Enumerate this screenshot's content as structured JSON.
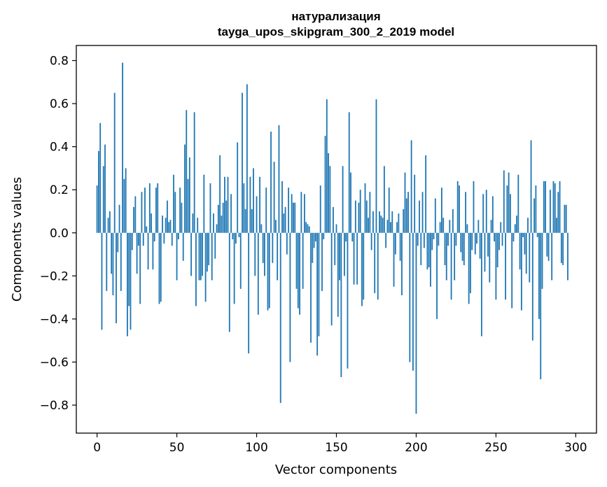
{
  "chart_data": {
    "type": "bar",
    "title": "натурализация",
    "subtitle": "tayga_upos_skipgram_300_2_2019 model",
    "xlabel": "Vector components",
    "ylabel": "Components values",
    "xlim": [
      -13,
      313
    ],
    "ylim": [
      -0.93,
      0.87
    ],
    "xticks": [
      0,
      50,
      100,
      150,
      200,
      250,
      300
    ],
    "yticks": [
      -0.8,
      -0.6,
      -0.4,
      -0.2,
      0.0,
      0.2,
      0.4,
      0.6,
      0.8
    ],
    "ytick_labels": [
      "−0.8",
      "−0.6",
      "−0.4",
      "−0.2",
      "0.0",
      "0.2",
      "0.4",
      "0.6",
      "0.8"
    ],
    "bar_color": "#1f77b4",
    "values": [
      0.22,
      0.38,
      0.51,
      -0.45,
      0.31,
      0.41,
      -0.27,
      0.07,
      0.1,
      -0.19,
      -0.29,
      0.65,
      -0.42,
      -0.09,
      0.13,
      -0.27,
      0.79,
      0.25,
      0.3,
      -0.48,
      -0.34,
      -0.45,
      -0.08,
      0.12,
      0.17,
      -0.19,
      -0.06,
      -0.33,
      0.19,
      -0.06,
      0.21,
      0.03,
      -0.17,
      0.23,
      0.09,
      -0.17,
      -0.04,
      0.21,
      0.23,
      -0.33,
      -0.32,
      0.08,
      -0.05,
      0.07,
      0.15,
      0.05,
      0.06,
      -0.06,
      0.27,
      0.19,
      -0.22,
      -0.03,
      0.21,
      0.14,
      -0.13,
      0.41,
      0.57,
      0.25,
      0.35,
      -0.2,
      0.09,
      0.56,
      -0.34,
      0.07,
      -0.22,
      -0.22,
      -0.2,
      0.27,
      -0.32,
      -0.18,
      -0.15,
      0.23,
      -0.22,
      0.09,
      -0.12,
      0.04,
      0.13,
      0.36,
      0.08,
      0.14,
      0.26,
      0.15,
      0.26,
      -0.46,
      0.18,
      -0.03,
      -0.33,
      -0.05,
      0.42,
      -0.02,
      -0.26,
      0.65,
      0.23,
      0.11,
      0.69,
      -0.56,
      0.26,
      0.11,
      0.3,
      -0.2,
      0.17,
      -0.38,
      0.26,
      0.04,
      -0.14,
      -0.2,
      0.21,
      -0.36,
      -0.35,
      0.47,
      -0.14,
      0.33,
      0.06,
      -0.22,
      0.5,
      -0.79,
      0.24,
      0.09,
      0.12,
      -0.1,
      0.21,
      -0.6,
      0.18,
      0.14,
      0.14,
      -0.26,
      -0.35,
      -0.38,
      0.19,
      -0.26,
      0.18,
      0.05,
      0.04,
      0.03,
      -0.51,
      -0.14,
      -0.07,
      -0.04,
      -0.57,
      -0.48,
      0.22,
      -0.27,
      -0.03,
      0.45,
      0.62,
      0.37,
      0.31,
      -0.43,
      0.12,
      -0.15,
      0.04,
      -0.39,
      -0.22,
      -0.67,
      0.31,
      -0.2,
      -0.04,
      -0.63,
      0.56,
      0.28,
      -0.04,
      -0.24,
      0.15,
      -0.24,
      0.14,
      0.2,
      -0.34,
      -0.31,
      0.23,
      0.15,
      0.07,
      0.19,
      -0.08,
      0.1,
      -0.28,
      0.62,
      -0.31,
      0.1,
      0.08,
      0.07,
      0.31,
      -0.07,
      0.06,
      0.21,
      0.05,
      0.1,
      -0.25,
      -0.1,
      0.05,
      0.09,
      -0.13,
      -0.29,
      0.11,
      0.28,
      0.16,
      0.19,
      -0.6,
      0.43,
      -0.64,
      0.27,
      -0.84,
      -0.06,
      0.15,
      -0.15,
      0.19,
      -0.07,
      0.36,
      -0.17,
      -0.16,
      -0.25,
      -0.08,
      -0.03,
      0.16,
      -0.4,
      -0.06,
      0.05,
      0.21,
      0.07,
      -0.15,
      -0.22,
      -0.06,
      0.06,
      -0.31,
      0.11,
      -0.22,
      -0.06,
      0.24,
      0.22,
      -0.09,
      -0.13,
      -0.15,
      0.19,
      0.04,
      -0.33,
      -0.28,
      -0.08,
      0.24,
      -0.1,
      -0.05,
      0.06,
      -0.12,
      -0.48,
      0.18,
      -0.18,
      0.2,
      -0.11,
      -0.23,
      0.06,
      0.17,
      -0.04,
      -0.31,
      -0.16,
      -0.08,
      0.05,
      -0.06,
      0.29,
      -0.31,
      0.22,
      0.28,
      0.18,
      -0.35,
      -0.04,
      0.04,
      0.08,
      0.27,
      -0.17,
      -0.36,
      -0.02,
      -0.1,
      -0.19,
      0.07,
      -0.23,
      0.43,
      -0.5,
      0.16,
      0.22,
      -0.02,
      -0.4,
      -0.68,
      -0.26,
      0.24,
      0.24,
      -0.11,
      -0.13,
      0.2,
      -0.22,
      0.24,
      0.23,
      0.07,
      0.19,
      0.24,
      -0.14,
      -0.15,
      0.13,
      0.13,
      -0.22
    ]
  }
}
